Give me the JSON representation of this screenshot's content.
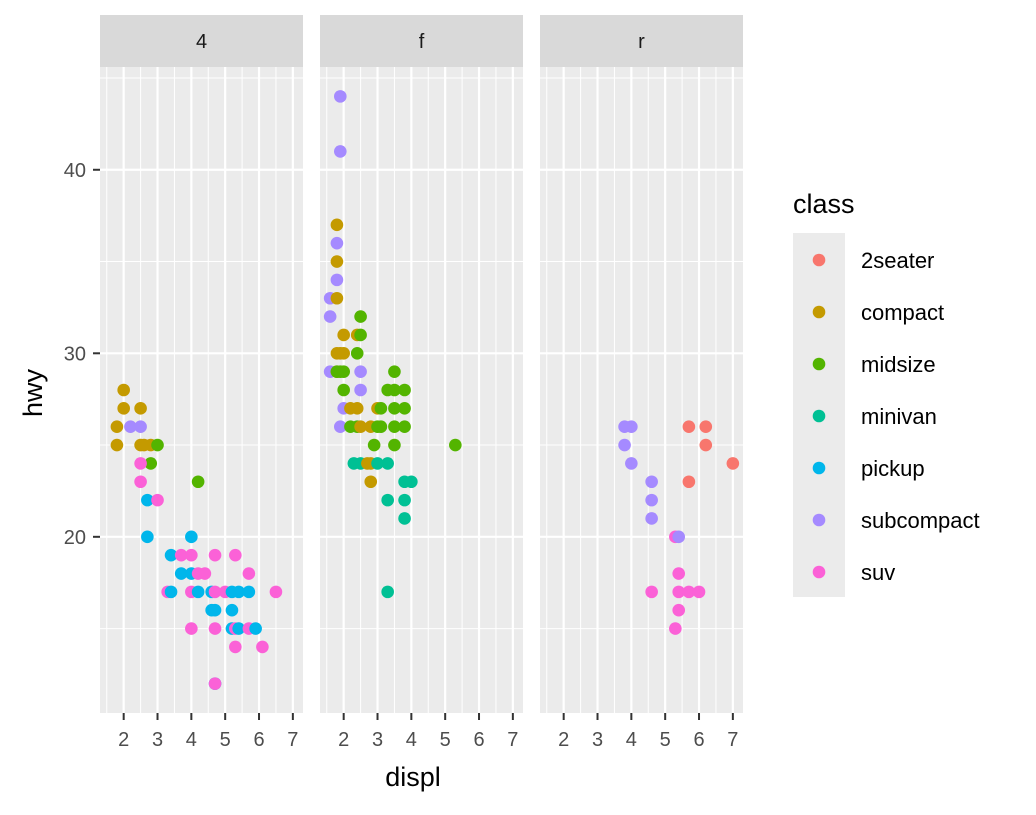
{
  "chart_data": {
    "type": "scatter",
    "title": "",
    "xlabel": "displ",
    "ylabel": "hwy",
    "xlim": [
      1.3,
      7.3
    ],
    "ylim": [
      10.4,
      45.6
    ],
    "x_ticks": [
      2,
      3,
      4,
      5,
      6,
      7
    ],
    "y_ticks": [
      20,
      30,
      40
    ],
    "grid": true,
    "legend_position": "right",
    "legend_title": "class",
    "facets": [
      {
        "label": "4",
        "points": [
          [
            1.8,
            26,
            "compact"
          ],
          [
            1.8,
            25,
            "compact"
          ],
          [
            2.0,
            28,
            "compact"
          ],
          [
            2.0,
            27,
            "compact"
          ],
          [
            2.2,
            26,
            "subcompact"
          ],
          [
            2.5,
            26,
            "subcompact"
          ],
          [
            2.5,
            27,
            "compact"
          ],
          [
            2.5,
            25,
            "compact"
          ],
          [
            2.6,
            25,
            "compact"
          ],
          [
            2.8,
            25,
            "compact"
          ],
          [
            2.8,
            24,
            "midsize"
          ],
          [
            3.0,
            25,
            "midsize"
          ],
          [
            2.5,
            24,
            "suv"
          ],
          [
            2.5,
            23,
            "suv"
          ],
          [
            2.7,
            22,
            "pickup"
          ],
          [
            3.0,
            22,
            "suv"
          ],
          [
            2.7,
            20,
            "pickup"
          ],
          [
            3.3,
            17,
            "suv"
          ],
          [
            3.4,
            17,
            "pickup"
          ],
          [
            3.4,
            19,
            "pickup"
          ],
          [
            3.7,
            18,
            "pickup"
          ],
          [
            3.7,
            19,
            "suv"
          ],
          [
            4.0,
            20,
            "pickup"
          ],
          [
            4.0,
            19,
            "suv"
          ],
          [
            4.0,
            18,
            "pickup"
          ],
          [
            4.0,
            17,
            "suv"
          ],
          [
            4.0,
            15,
            "suv"
          ],
          [
            4.2,
            23,
            "midsize"
          ],
          [
            4.2,
            18,
            "suv"
          ],
          [
            4.2,
            17,
            "pickup"
          ],
          [
            4.4,
            18,
            "suv"
          ],
          [
            4.6,
            17,
            "pickup"
          ],
          [
            4.6,
            16,
            "pickup"
          ],
          [
            4.7,
            19,
            "suv"
          ],
          [
            4.7,
            17,
            "suv"
          ],
          [
            4.7,
            16,
            "pickup"
          ],
          [
            4.7,
            15,
            "suv"
          ],
          [
            4.7,
            12,
            "pickup"
          ],
          [
            4.7,
            12,
            "suv"
          ],
          [
            5.0,
            17,
            "suv"
          ],
          [
            5.2,
            17,
            "pickup"
          ],
          [
            5.2,
            16,
            "pickup"
          ],
          [
            5.2,
            15,
            "pickup"
          ],
          [
            5.3,
            19,
            "suv"
          ],
          [
            5.3,
            15,
            "suv"
          ],
          [
            5.3,
            14,
            "suv"
          ],
          [
            5.4,
            17,
            "pickup"
          ],
          [
            5.4,
            15,
            "pickup"
          ],
          [
            5.7,
            18,
            "suv"
          ],
          [
            5.7,
            17,
            "pickup"
          ],
          [
            5.7,
            15,
            "suv"
          ],
          [
            5.9,
            15,
            "pickup"
          ],
          [
            6.1,
            14,
            "suv"
          ],
          [
            6.5,
            17,
            "suv"
          ]
        ]
      },
      {
        "label": "f",
        "points": [
          [
            1.6,
            33,
            "subcompact"
          ],
          [
            1.6,
            32,
            "subcompact"
          ],
          [
            1.6,
            29,
            "subcompact"
          ],
          [
            1.8,
            37,
            "compact"
          ],
          [
            1.8,
            35,
            "compact"
          ],
          [
            1.8,
            33,
            "compact"
          ],
          [
            1.8,
            30,
            "compact"
          ],
          [
            1.8,
            29,
            "compact"
          ],
          [
            1.8,
            36,
            "subcompact"
          ],
          [
            1.8,
            34,
            "subcompact"
          ],
          [
            1.8,
            29,
            "midsize"
          ],
          [
            1.9,
            44,
            "subcompact"
          ],
          [
            1.9,
            41,
            "subcompact"
          ],
          [
            1.9,
            30,
            "compact"
          ],
          [
            1.9,
            29,
            "midsize"
          ],
          [
            1.9,
            26,
            "subcompact"
          ],
          [
            2.0,
            31,
            "compact"
          ],
          [
            2.0,
            30,
            "compact"
          ],
          [
            2.0,
            29,
            "midsize"
          ],
          [
            2.0,
            28,
            "midsize"
          ],
          [
            2.0,
            27,
            "subcompact"
          ],
          [
            2.2,
            27,
            "compact"
          ],
          [
            2.2,
            26,
            "midsize"
          ],
          [
            2.3,
            24,
            "minivan"
          ],
          [
            2.4,
            31,
            "compact"
          ],
          [
            2.4,
            30,
            "midsize"
          ],
          [
            2.4,
            27,
            "compact"
          ],
          [
            2.4,
            26,
            "midsize"
          ],
          [
            2.5,
            32,
            "midsize"
          ],
          [
            2.5,
            31,
            "midsize"
          ],
          [
            2.5,
            29,
            "subcompact"
          ],
          [
            2.5,
            28,
            "subcompact"
          ],
          [
            2.5,
            26,
            "compact"
          ],
          [
            2.5,
            24,
            "minivan"
          ],
          [
            2.7,
            24,
            "compact"
          ],
          [
            2.8,
            26,
            "compact"
          ],
          [
            2.8,
            24,
            "compact"
          ],
          [
            2.8,
            23,
            "compact"
          ],
          [
            2.9,
            25,
            "midsize"
          ],
          [
            3.0,
            27,
            "compact"
          ],
          [
            3.0,
            26,
            "midsize"
          ],
          [
            3.0,
            24,
            "minivan"
          ],
          [
            3.1,
            27,
            "midsize"
          ],
          [
            3.1,
            26,
            "midsize"
          ],
          [
            3.3,
            28,
            "midsize"
          ],
          [
            3.3,
            24,
            "minivan"
          ],
          [
            3.3,
            22,
            "minivan"
          ],
          [
            3.3,
            17,
            "minivan"
          ],
          [
            3.5,
            29,
            "midsize"
          ],
          [
            3.5,
            28,
            "midsize"
          ],
          [
            3.5,
            27,
            "midsize"
          ],
          [
            3.5,
            26,
            "midsize"
          ],
          [
            3.5,
            25,
            "midsize"
          ],
          [
            3.8,
            28,
            "midsize"
          ],
          [
            3.8,
            27,
            "midsize"
          ],
          [
            3.8,
            26,
            "midsize"
          ],
          [
            3.8,
            23,
            "minivan"
          ],
          [
            3.8,
            22,
            "minivan"
          ],
          [
            3.8,
            21,
            "minivan"
          ],
          [
            4.0,
            23,
            "minivan"
          ],
          [
            5.3,
            25,
            "midsize"
          ]
        ]
      },
      {
        "label": "r",
        "points": [
          [
            3.8,
            26,
            "subcompact"
          ],
          [
            3.8,
            25,
            "subcompact"
          ],
          [
            4.0,
            26,
            "subcompact"
          ],
          [
            4.0,
            24,
            "subcompact"
          ],
          [
            4.6,
            23,
            "subcompact"
          ],
          [
            4.6,
            22,
            "subcompact"
          ],
          [
            4.6,
            21,
            "subcompact"
          ],
          [
            4.6,
            17,
            "suv"
          ],
          [
            5.3,
            20,
            "suv"
          ],
          [
            5.4,
            20,
            "subcompact"
          ],
          [
            5.4,
            18,
            "suv"
          ],
          [
            5.4,
            17,
            "suv"
          ],
          [
            5.4,
            16,
            "suv"
          ],
          [
            5.3,
            15,
            "suv"
          ],
          [
            5.7,
            26,
            "2seater"
          ],
          [
            5.7,
            23,
            "2seater"
          ],
          [
            5.7,
            17,
            "suv"
          ],
          [
            6.0,
            17,
            "suv"
          ],
          [
            6.2,
            26,
            "2seater"
          ],
          [
            6.2,
            25,
            "2seater"
          ],
          [
            7.0,
            24,
            "2seater"
          ]
        ]
      }
    ],
    "series": [
      {
        "name": "2seater",
        "color": "#F8766D"
      },
      {
        "name": "compact",
        "color": "#C49A00"
      },
      {
        "name": "midsize",
        "color": "#53B400"
      },
      {
        "name": "minivan",
        "color": "#00C094"
      },
      {
        "name": "pickup",
        "color": "#00B6EB"
      },
      {
        "name": "subcompact",
        "color": "#A58AFF"
      },
      {
        "name": "suv",
        "color": "#FB61D7"
      }
    ]
  }
}
